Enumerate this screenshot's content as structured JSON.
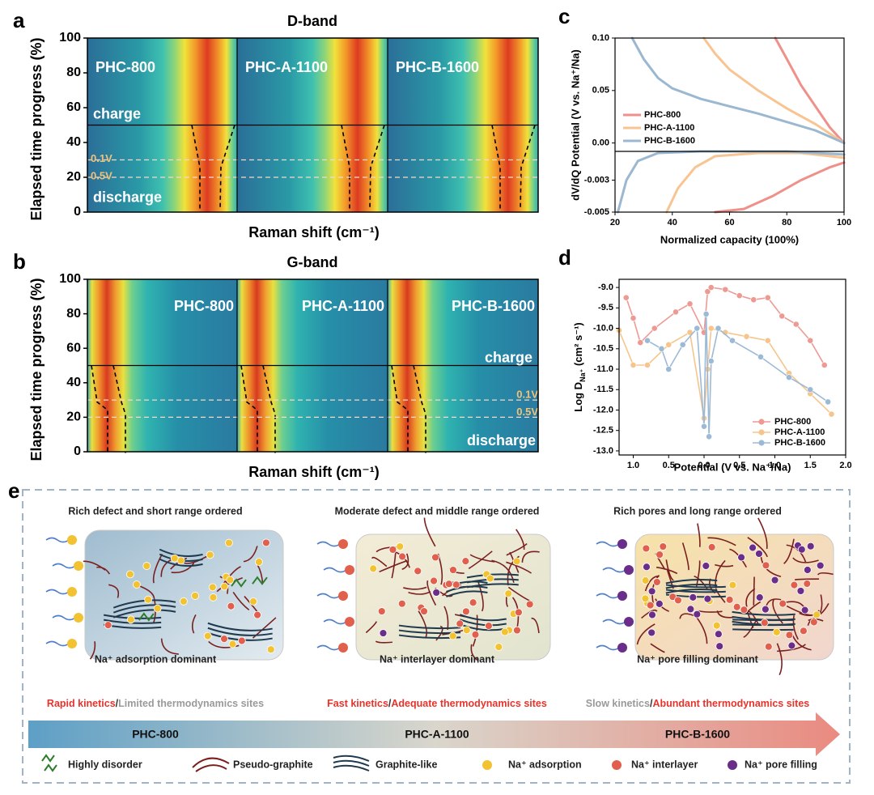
{
  "panel_a": {
    "label": "a",
    "title": "D-band",
    "y_label": "Elapsed time progress (%)",
    "x_label": "Raman shift (cm⁻¹)",
    "ylim": [
      0,
      100
    ],
    "yticks": [
      0,
      20,
      40,
      60,
      80,
      100
    ],
    "samples": [
      "PHC-800",
      "PHC-A-1100",
      "PHC-B-1600"
    ],
    "charge_label": "charge",
    "discharge_label": "discharge",
    "switch": 50,
    "markers": [
      {
        "label": "0.1V",
        "value": 30
      },
      {
        "label": "0.5V",
        "value": 20
      }
    ]
  },
  "panel_b": {
    "label": "b",
    "title": "G-band",
    "y_label": "Elapsed time progress (%)",
    "x_label": "Raman shift (cm⁻¹)",
    "ylim": [
      0,
      100
    ],
    "yticks": [
      0,
      20,
      40,
      60,
      80,
      100
    ],
    "samples": [
      "PHC-800",
      "PHC-A-1100",
      "PHC-B-1600"
    ],
    "charge_label": "charge",
    "discharge_label": "discharge",
    "switch": 50,
    "markers": [
      {
        "label": "0.1V",
        "value": 30
      },
      {
        "label": "0.5V",
        "value": 20
      }
    ]
  },
  "panel_c": {
    "label": "c",
    "type": "line",
    "x_label": "Normalized capacity (100%)",
    "y_label": "dV/dQ Potential (V vs. Na⁺/Na)",
    "xlim": [
      20,
      100
    ],
    "xticks": [
      20,
      40,
      60,
      80,
      100
    ],
    "ylim": [
      -0.008,
      0.1
    ],
    "yticks": [
      {
        "value": 0.1,
        "label": "0.10"
      },
      0.05,
      {
        "value": 0,
        "label": "0.00"
      }
    ],
    "y2lim": [
      -0.005,
      -0.0012
    ],
    "y2ticks": [
      -0.003,
      -0.005
    ],
    "series": [
      {
        "name": "PHC-800",
        "color": "#f0908a",
        "x": [
          76,
          80,
          85,
          90,
          95,
          100
        ],
        "values": [
          0.1,
          0.08,
          0.055,
          0.035,
          0.015,
          0
        ],
        "dvdq_x": [
          55,
          65,
          75,
          85,
          95,
          100
        ],
        "dvdq_values": [
          -0.005,
          -0.0048,
          -0.004,
          -0.003,
          -0.0022,
          -0.0019
        ]
      },
      {
        "name": "PHC-A-1100",
        "color": "#f8c592",
        "x": [
          51,
          55,
          60,
          70,
          80,
          90,
          100
        ],
        "values": [
          0.1,
          0.085,
          0.07,
          0.05,
          0.033,
          0.018,
          0
        ],
        "dvdq_x": [
          38,
          42,
          48,
          55,
          70,
          85,
          100
        ],
        "dvdq_values": [
          -0.005,
          -0.0035,
          -0.0022,
          -0.0015,
          -0.0013,
          -0.0013,
          -0.0016
        ]
      },
      {
        "name": "PHC-B-1600",
        "color": "#9bb8d0",
        "x": [
          26,
          30,
          35,
          40,
          50,
          60,
          70,
          80,
          90,
          100
        ],
        "values": [
          0.1,
          0.08,
          0.062,
          0.052,
          0.042,
          0.035,
          0.028,
          0.02,
          0.012,
          0
        ],
        "dvdq_x": [
          21,
          24,
          28,
          35,
          50,
          80,
          100
        ],
        "dvdq_values": [
          -0.005,
          -0.003,
          -0.0018,
          -0.0013,
          -0.0012,
          -0.0012,
          -0.0014
        ]
      }
    ]
  },
  "panel_d": {
    "label": "d",
    "type": "scatter",
    "x_label": "Potential (V vs. Na⁺/Na)",
    "y_label": "Log D",
    "y_label_sub": "Na⁺",
    "y_label_rest": " (cm² s⁻¹)",
    "xlim": [
      -1.2,
      2.0
    ],
    "xticks": [
      {
        "value": -1,
        "label": "1.0"
      },
      {
        "value": -0.5,
        "label": "0.5"
      },
      {
        "value": 0,
        "label": "0.0"
      },
      0.5,
      {
        "value": 1,
        "label": "1.0"
      },
      1.5,
      {
        "value": 2,
        "label": "2.0"
      }
    ],
    "ylim": [
      -13.1,
      -8.8
    ],
    "yticks": [
      {
        "value": -9,
        "label": "-9.0"
      },
      -9.5,
      {
        "value": -10,
        "label": "-10.0"
      },
      -10.5,
      {
        "value": -11,
        "label": "-11.0"
      },
      -11.5,
      {
        "value": -12,
        "label": "-12.0"
      },
      -12.5,
      {
        "value": -13,
        "label": "-13.0"
      }
    ],
    "series": [
      {
        "name": "PHC-800",
        "color": "#ee9a94",
        "x": [
          -1.1,
          -1.0,
          -0.9,
          -0.7,
          -0.4,
          -0.2,
          0.0,
          0.05,
          0.1,
          0.3,
          0.5,
          0.7,
          0.9,
          1.1,
          1.3,
          1.5,
          1.7
        ],
        "values": [
          -9.25,
          -9.75,
          -10.35,
          -10.0,
          -9.6,
          -9.4,
          -10.1,
          -9.1,
          -9.0,
          -9.05,
          -9.2,
          -9.3,
          -9.25,
          -9.7,
          -9.9,
          -10.3,
          -10.9
        ]
      },
      {
        "name": "PHC-A-1100",
        "color": "#f6c58c",
        "x": [
          -1.2,
          -1.0,
          -0.8,
          -0.5,
          -0.2,
          0.0,
          0.05,
          0.1,
          0.3,
          0.6,
          0.9,
          1.2,
          1.5,
          1.8
        ],
        "values": [
          -10.05,
          -10.9,
          -10.9,
          -10.4,
          -10.1,
          -12.2,
          -11.0,
          -10.0,
          -10.1,
          -10.2,
          -10.3,
          -11.1,
          -11.6,
          -12.1
        ]
      },
      {
        "name": "PHC-B-1600",
        "color": "#9cbad6",
        "x": [
          -0.8,
          -0.6,
          -0.5,
          -0.3,
          -0.1,
          0.0,
          0.03,
          0.07,
          0.1,
          0.2,
          0.4,
          0.8,
          1.2,
          1.5,
          1.75
        ],
        "values": [
          -10.3,
          -10.5,
          -11.0,
          -10.4,
          -10.0,
          -12.4,
          -9.65,
          -12.65,
          -10.8,
          -10.0,
          -10.3,
          -10.7,
          -11.2,
          -11.5,
          -11.8
        ]
      }
    ]
  },
  "panel_e": {
    "label": "e",
    "columns": [
      {
        "heading": "Rich defect and short range ordered",
        "mechanism": "Na⁺ adsorption dominant",
        "sample": "PHC-800",
        "kinetics": [
          {
            "text": "Rapid kinetics",
            "color": "#e8332c"
          },
          {
            "text": "/",
            "color": "#333333"
          },
          {
            "text": "Limited thermodynamics sites",
            "color": "#9a9a9a"
          }
        ]
      },
      {
        "heading": "Moderate defect and middle range ordered",
        "mechanism": "Na⁺ interlayer dominant",
        "sample": "PHC-A-1100",
        "kinetics": [
          {
            "text": "Fast kinetics",
            "color": "#e8332c"
          },
          {
            "text": "/",
            "color": "#333333"
          },
          {
            "text": "Adequate thermodynamics sites",
            "color": "#e8332c"
          }
        ]
      },
      {
        "heading": "Rich pores and long range ordered",
        "mechanism": "Na⁺ pore filling dominant",
        "sample": "PHC-B-1600",
        "kinetics": [
          {
            "text": "Slow kinetics",
            "color": "#9a9a9a"
          },
          {
            "text": "/",
            "color": "#333333"
          },
          {
            "text": "Abundant thermodynamics sites",
            "color": "#e8332c"
          }
        ]
      }
    ],
    "legend": [
      "Highly disorder",
      "Pseudo-graphite",
      "Graphite-like",
      "Na⁺ adsorption",
      "Na⁺ interlayer",
      "Na⁺ pore filling"
    ]
  }
}
